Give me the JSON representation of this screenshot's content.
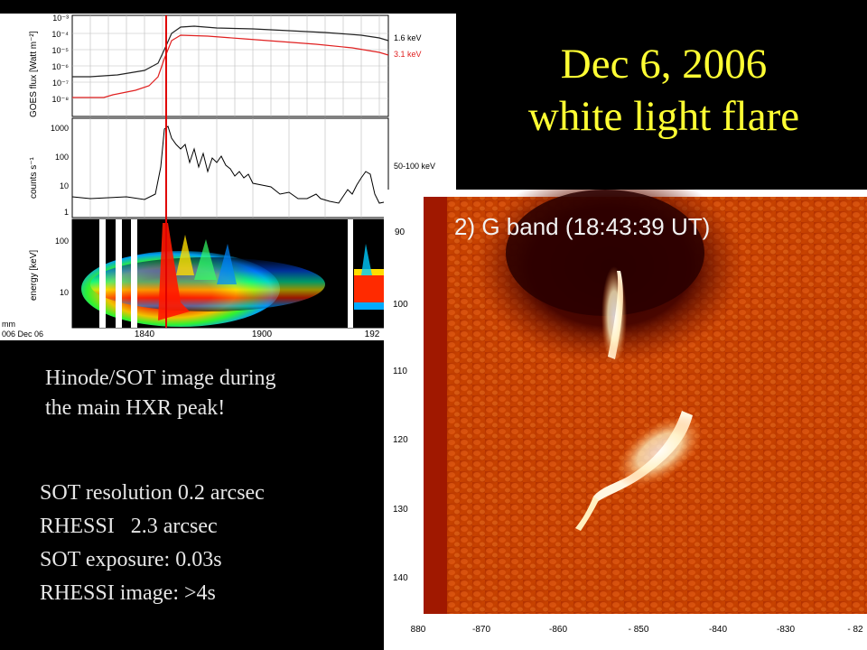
{
  "title": {
    "line1": "Dec 6, 2006",
    "line2": "white light flare"
  },
  "description": [
    "Hinode/SOT image during",
    "the main HXR peak!"
  ],
  "stats": [
    "SOT resolution 0.2 arcsec",
    "RHESSI   2.3 arcsec",
    "SOT exposure: 0.03s",
    "RHESSI image: >4s"
  ],
  "goes_panel": {
    "flux_axis_label": "GOES flux [Watt m⁻²]",
    "flux_ticks": [
      "10⁻³",
      "10⁻⁴",
      "10⁻⁵",
      "10⁻⁶",
      "10⁻⁷",
      "10⁻⁸"
    ],
    "legend": [
      "1.6 keV",
      "3.1 keV"
    ],
    "counts_axis_label": "counts s⁻¹",
    "counts_ticks": [
      "1000",
      "100",
      "10",
      "1"
    ],
    "counts_band": "50-100 keV",
    "energy_axis_label": "energy [keV]",
    "energy_ticks": [
      "100",
      "10"
    ],
    "time_ticks": [
      "1840",
      "1900",
      "192"
    ],
    "time_label_1": "mm",
    "time_label_2": "006 Dec 06",
    "colors": {
      "flux_low": "#222222",
      "flux_high": "#e02020",
      "marker": "#e00000"
    }
  },
  "gband_panel": {
    "label": "2) G band (18:43:39 UT)",
    "y_ticks": [
      "90",
      "100",
      "110",
      "120",
      "130",
      "140"
    ],
    "x_ticks": [
      "880",
      "-870",
      "-860",
      "- 850",
      "-840",
      "-830",
      "- 82"
    ]
  }
}
